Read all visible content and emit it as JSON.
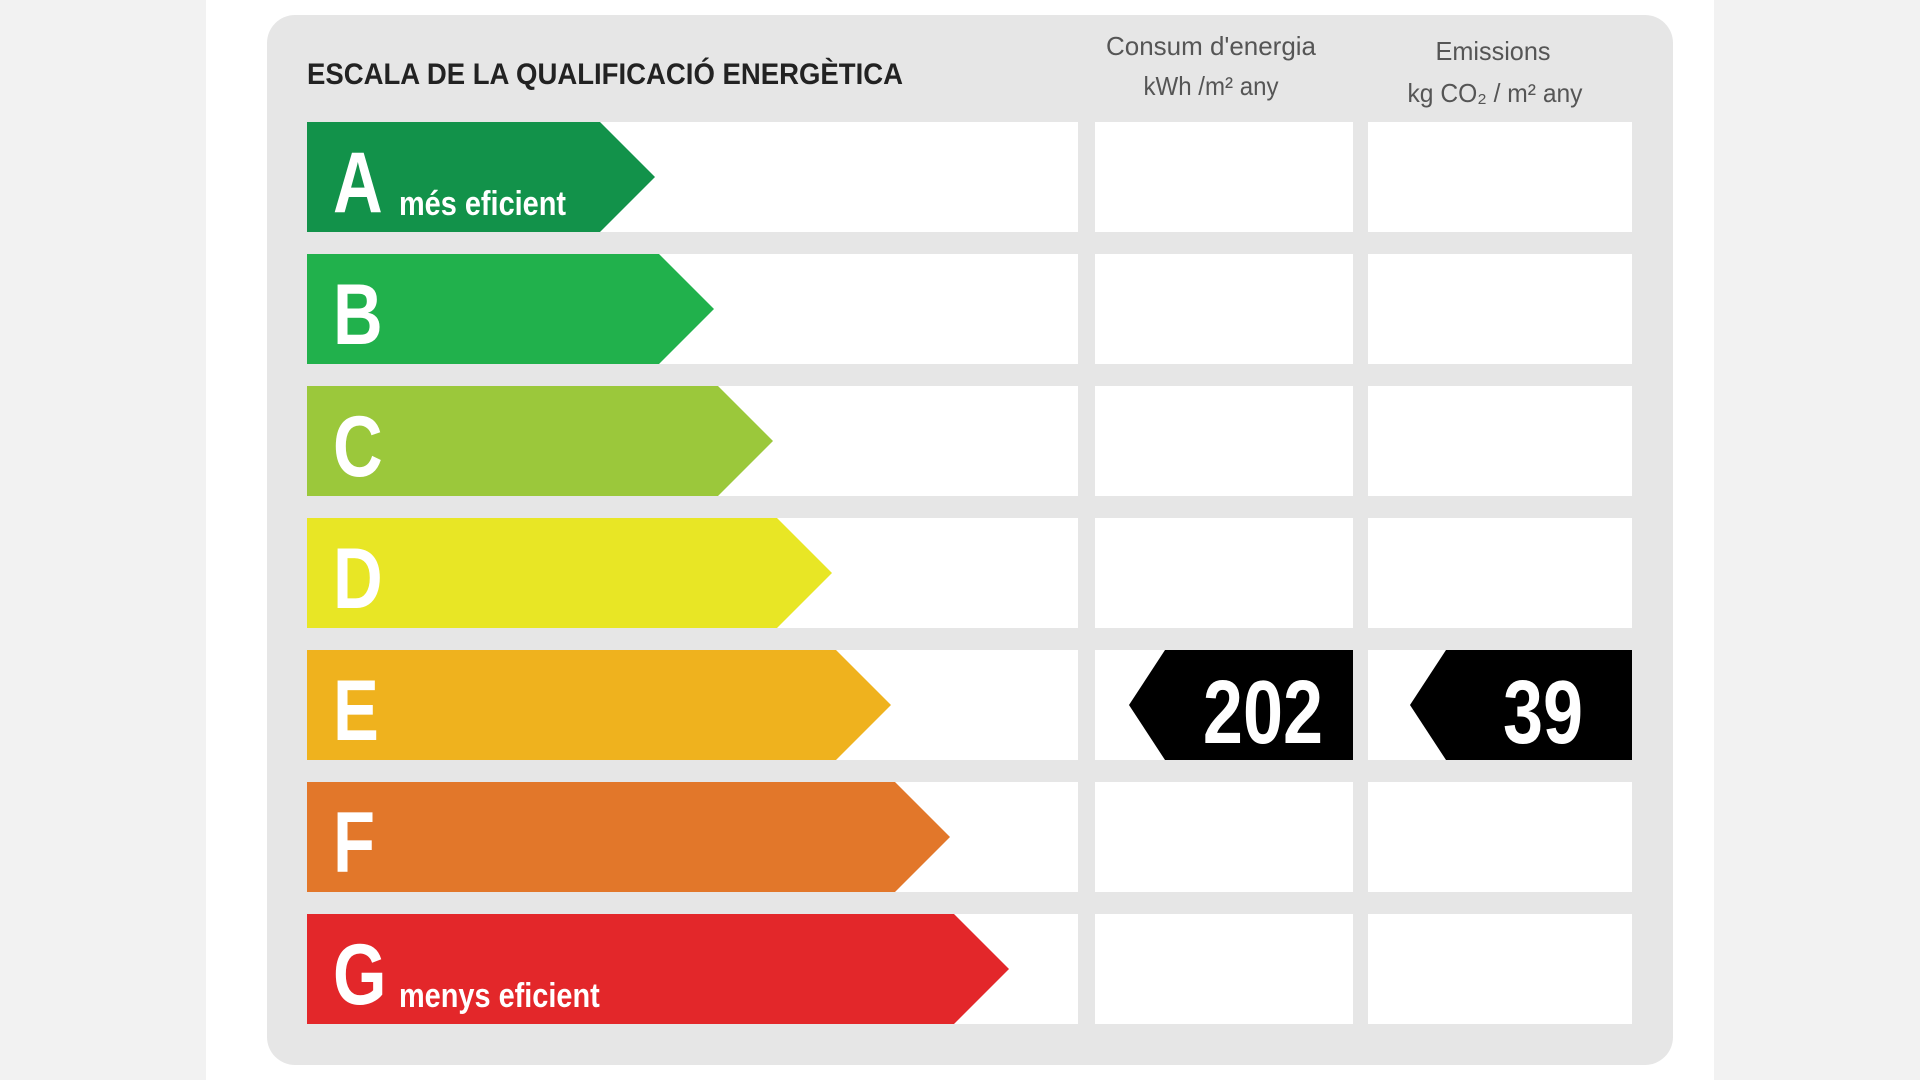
{
  "header": {
    "title": "ESCALA DE LA QUALIFICACIÓ ENERGÈTICA",
    "columns": [
      {
        "title": "Consum d'energia",
        "unit": "kWh /m² any"
      },
      {
        "title": "Emissions",
        "unit": "kg CO₂ / m² any"
      }
    ]
  },
  "rows": [
    {
      "letter": "A",
      "label": "més eficient",
      "color": "#12924a"
    },
    {
      "letter": "B",
      "color": "#21b14c"
    },
    {
      "letter": "C",
      "color": "#9bc83b"
    },
    {
      "letter": "D",
      "color": "#e8e625"
    },
    {
      "letter": "E",
      "color": "#efb21e",
      "consumption": 202,
      "emissions": 39
    },
    {
      "letter": "F",
      "color": "#e2772a"
    },
    {
      "letter": "G",
      "label": "menys eficient",
      "color": "#e3272a"
    }
  ]
}
